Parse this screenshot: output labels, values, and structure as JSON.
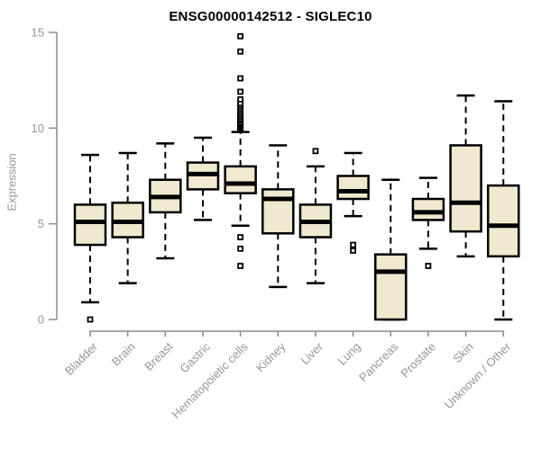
{
  "chart_data": {
    "type": "boxplot",
    "title": "ENSG00000142512 - SIGLEC10",
    "ylabel": "Expression",
    "xlabel": "",
    "ylim": [
      0,
      15
    ],
    "yticks": [
      0,
      5,
      10,
      15
    ],
    "grid": false,
    "legend": "none",
    "box_fill_color": "#f0e9cf",
    "box_line_color": "#000000",
    "axis_color": "#8b8b8b",
    "label_color": "#969696",
    "categories": [
      "Bladder",
      "Brain",
      "Breast",
      "Gastric",
      "Hematopoietic cells",
      "Kidney",
      "Liver",
      "Lung",
      "Pancreas",
      "Prostate",
      "Skin",
      "Unknown / Other"
    ],
    "series": [
      {
        "name": "Bladder",
        "low": 0.9,
        "q1": 3.9,
        "median": 5.1,
        "q3": 6.0,
        "high": 8.6,
        "outliers": [
          0.0
        ]
      },
      {
        "name": "Brain",
        "low": 1.9,
        "q1": 4.3,
        "median": 5.1,
        "q3": 6.1,
        "high": 8.7,
        "outliers": []
      },
      {
        "name": "Breast",
        "low": 3.2,
        "q1": 5.6,
        "median": 6.4,
        "q3": 7.3,
        "high": 9.2,
        "outliers": []
      },
      {
        "name": "Gastric",
        "low": 5.2,
        "q1": 6.8,
        "median": 7.6,
        "q3": 8.2,
        "high": 9.5,
        "outliers": []
      },
      {
        "name": "Hematopoietic cells",
        "low": 4.9,
        "q1": 6.6,
        "median": 7.1,
        "q3": 8.0,
        "high": 9.8,
        "outliers": [
          2.8,
          3.7,
          4.3,
          9.9,
          9.95,
          10.0,
          10.05,
          10.1,
          10.15,
          10.2,
          10.25,
          10.3,
          10.4,
          10.45,
          10.5,
          10.6,
          10.7,
          10.8,
          10.9,
          11.0,
          11.1,
          11.2,
          11.3,
          11.5,
          11.9,
          12.6,
          14.0,
          14.8
        ]
      },
      {
        "name": "Kidney",
        "low": 1.7,
        "q1": 4.5,
        "median": 6.3,
        "q3": 6.8,
        "high": 9.1,
        "outliers": []
      },
      {
        "name": "Liver",
        "low": 1.9,
        "q1": 4.3,
        "median": 5.1,
        "q3": 6.0,
        "high": 8.0,
        "outliers": [
          8.8
        ]
      },
      {
        "name": "Lung",
        "low": 5.4,
        "q1": 6.3,
        "median": 6.7,
        "q3": 7.5,
        "high": 8.7,
        "outliers": [
          3.9,
          3.6
        ]
      },
      {
        "name": "Pancreas",
        "low": 0.0,
        "q1": 0.0,
        "median": 2.5,
        "q3": 3.4,
        "high": 7.3,
        "outliers": []
      },
      {
        "name": "Prostate",
        "low": 3.7,
        "q1": 5.2,
        "median": 5.6,
        "q3": 6.3,
        "high": 7.4,
        "outliers": [
          2.8
        ]
      },
      {
        "name": "Skin",
        "low": 3.3,
        "q1": 4.6,
        "median": 6.1,
        "q3": 9.1,
        "high": 11.7,
        "outliers": []
      },
      {
        "name": "Unknown / Other",
        "low": 0.0,
        "q1": 3.3,
        "median": 4.9,
        "q3": 7.0,
        "high": 11.4,
        "outliers": []
      }
    ]
  }
}
